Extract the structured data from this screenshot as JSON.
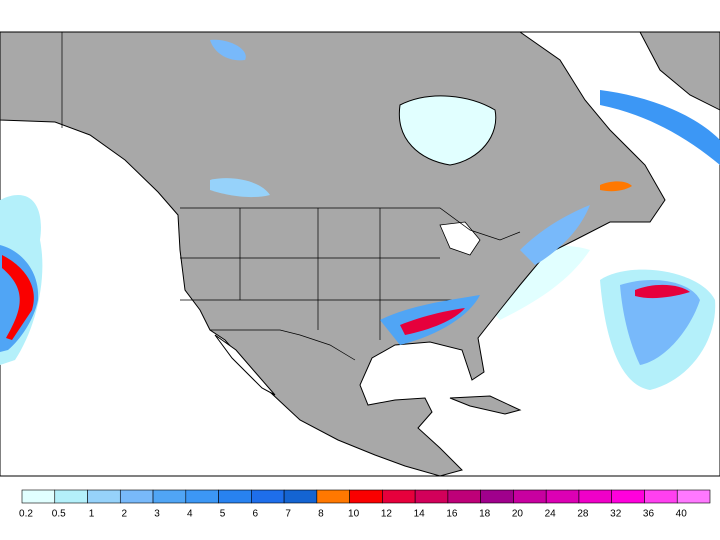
{
  "colorbar": {
    "labels": [
      "0.2",
      "0.5",
      "1",
      "2",
      "3",
      "4",
      "5",
      "6",
      "7",
      "8",
      "10",
      "12",
      "14",
      "16",
      "18",
      "20",
      "24",
      "28",
      "32",
      "36",
      "40"
    ],
    "colors": [
      "#e1ffff",
      "#b4f0fa",
      "#96d2fa",
      "#78b9fa",
      "#50a5f5",
      "#3c97f5",
      "#2882f0",
      "#1e6eeb",
      "#1464d2",
      "#ff7800",
      "#fa0000",
      "#e6003c",
      "#d2005a",
      "#be0078",
      "#a0008c",
      "#c800a0",
      "#dc00b4",
      "#f000c8",
      "#ff00dc",
      "#ff40f0",
      "#ff78ff"
    ]
  }
}
